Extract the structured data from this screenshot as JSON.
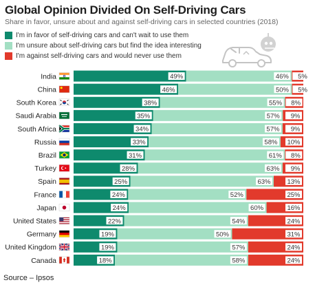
{
  "title": "Global Opinion Divided On Self-Driving Cars",
  "subtitle": "Share in favor, unsure about and against self-driving cars in selected countries (2018)",
  "source": "Source – Ipsos",
  "icons": {
    "header_illustration": "car-robot-icon"
  },
  "colors": {
    "favor": "#0e8a6d",
    "unsure": "#a3dfc3",
    "against": "#e23a2c",
    "label_bg": "#ffffff",
    "text": "#222222"
  },
  "legend": [
    {
      "key": "favor",
      "label": "I'm in favor of self-driving cars and can't wait to use them"
    },
    {
      "key": "unsure",
      "label": "I'm unsure about self-driving cars but find the idea interesting"
    },
    {
      "key": "against",
      "label": "I'm against self-driving cars and would never use them"
    }
  ],
  "chart_data": {
    "type": "bar",
    "orientation": "horizontal",
    "stacked": true,
    "unit": "%",
    "categories": [
      "India",
      "China",
      "South Korea",
      "Saudi Arabia",
      "South Africa",
      "Russia",
      "Brazil",
      "Turkey",
      "Spain",
      "France",
      "Japan",
      "United States",
      "Germany",
      "United Kingdom",
      "Canada"
    ],
    "flags": [
      "india-flag-icon",
      "china-flag-icon",
      "south-korea-flag-icon",
      "saudi-arabia-flag-icon",
      "south-africa-flag-icon",
      "russia-flag-icon",
      "brazil-flag-icon",
      "turkey-flag-icon",
      "spain-flag-icon",
      "france-flag-icon",
      "japan-flag-icon",
      "united-states-flag-icon",
      "germany-flag-icon",
      "united-kingdom-flag-icon",
      "canada-flag-icon"
    ],
    "series": [
      {
        "key": "favor",
        "values": [
          49,
          46,
          38,
          35,
          34,
          33,
          31,
          28,
          25,
          24,
          24,
          22,
          19,
          19,
          18
        ]
      },
      {
        "key": "unsure",
        "values": [
          46,
          50,
          55,
          57,
          57,
          58,
          61,
          63,
          63,
          52,
          60,
          54,
          50,
          57,
          58
        ]
      },
      {
        "key": "against",
        "values": [
          5,
          5,
          8,
          9,
          9,
          10,
          8,
          9,
          13,
          25,
          16,
          24,
          31,
          24,
          24
        ]
      }
    ]
  }
}
